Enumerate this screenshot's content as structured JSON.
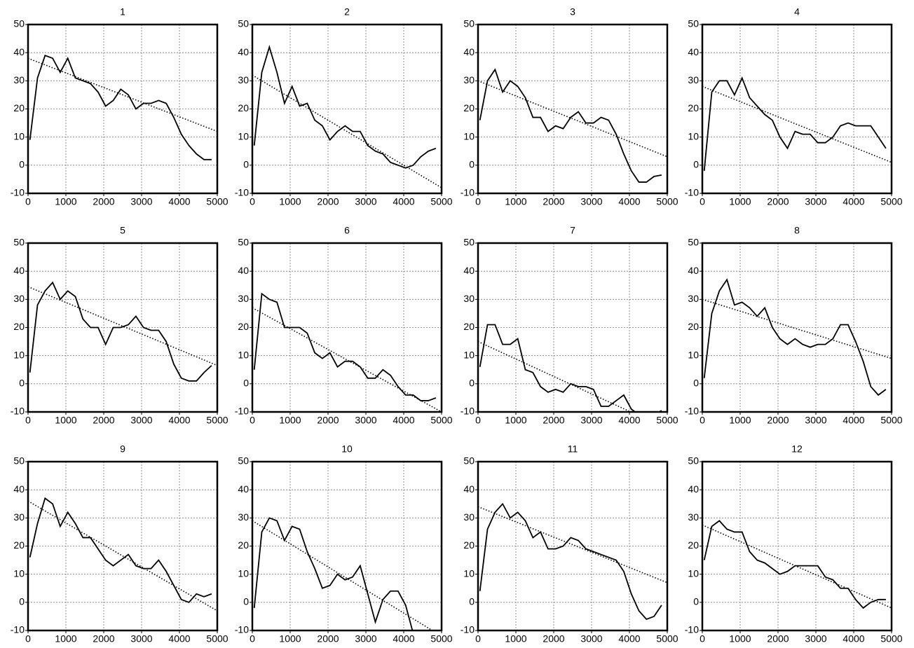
{
  "chart_data": [
    {
      "type": "line",
      "title": "1",
      "x": [
        50,
        250,
        450,
        650,
        850,
        1050,
        1250,
        1450,
        1650,
        1850,
        2050,
        2250,
        2450,
        2650,
        2850,
        3050,
        3250,
        3450,
        3650,
        3850,
        4050,
        4250,
        4450,
        4650,
        4850
      ],
      "series": [
        {
          "color": "#000000",
          "values": [
            9,
            31,
            39,
            38,
            33,
            38,
            31,
            30,
            29,
            26,
            21,
            23,
            27,
            25,
            20,
            22,
            22,
            23,
            22,
            17,
            11,
            7,
            4,
            2,
            2
          ]
        },
        {
          "color": "#000000",
          "style": "dotted",
          "x": [
            0,
            5000
          ],
          "values": [
            38,
            12
          ]
        }
      ],
      "xlim": [
        0,
        5000
      ],
      "xticks": [
        0,
        1000,
        2000,
        3000,
        4000,
        5000
      ],
      "ylim": [
        -10,
        50
      ],
      "yticks": [
        -10,
        0,
        10,
        20,
        30,
        40,
        50
      ],
      "grid": true
    },
    {
      "type": "line",
      "title": "2",
      "x": [
        50,
        250,
        450,
        650,
        850,
        1050,
        1250,
        1450,
        1650,
        1850,
        2050,
        2250,
        2450,
        2650,
        2850,
        3050,
        3250,
        3450,
        3650,
        3850,
        4050,
        4250,
        4450,
        4650,
        4850
      ],
      "series": [
        {
          "color": "#000000",
          "values": [
            7,
            33,
            42,
            33,
            22,
            28,
            21,
            22,
            16,
            14,
            9,
            12,
            14,
            12,
            12,
            7,
            5,
            4,
            1,
            0,
            -1,
            0,
            3,
            5,
            6
          ]
        },
        {
          "color": "#000000",
          "style": "dotted",
          "x": [
            0,
            5000
          ],
          "values": [
            32,
            -8
          ]
        }
      ],
      "xlim": [
        0,
        5000
      ],
      "xticks": [
        0,
        1000,
        2000,
        3000,
        4000,
        5000
      ],
      "ylim": [
        -10,
        50
      ],
      "yticks": [
        -10,
        0,
        10,
        20,
        30,
        40,
        50
      ],
      "grid": true
    },
    {
      "type": "line",
      "title": "3",
      "x": [
        50,
        250,
        450,
        650,
        850,
        1050,
        1250,
        1450,
        1650,
        1850,
        2050,
        2250,
        2450,
        2650,
        2850,
        3050,
        3250,
        3450,
        3650,
        3850,
        4050,
        4250,
        4450,
        4650,
        4850
      ],
      "series": [
        {
          "color": "#000000",
          "values": [
            16,
            30,
            34,
            26,
            30,
            28,
            24,
            17,
            17,
            12,
            14,
            13,
            17,
            19,
            15,
            15,
            17,
            16,
            11,
            4,
            -2,
            -6,
            -6,
            -4,
            -3.5
          ]
        },
        {
          "color": "#000000",
          "style": "dotted",
          "x": [
            0,
            5000
          ],
          "values": [
            30,
            3
          ]
        }
      ],
      "xlim": [
        0,
        5000
      ],
      "xticks": [
        0,
        1000,
        2000,
        3000,
        4000,
        5000
      ],
      "ylim": [
        -10,
        50
      ],
      "yticks": [
        -10,
        0,
        10,
        20,
        30,
        40,
        50
      ],
      "grid": true
    },
    {
      "type": "line",
      "title": "4",
      "x": [
        50,
        250,
        450,
        650,
        850,
        1050,
        1250,
        1450,
        1650,
        1850,
        2050,
        2250,
        2450,
        2650,
        2850,
        3050,
        3250,
        3450,
        3650,
        3850,
        4050,
        4250,
        4450,
        4650,
        4850
      ],
      "series": [
        {
          "color": "#000000",
          "values": [
            -2,
            26,
            30,
            30,
            25,
            31,
            24,
            21,
            18,
            16,
            10,
            6,
            12,
            11,
            11,
            8,
            8,
            10,
            14,
            15,
            14,
            14,
            14,
            10,
            6
          ]
        },
        {
          "color": "#000000",
          "style": "dotted",
          "x": [
            0,
            5000
          ],
          "values": [
            28,
            1
          ]
        }
      ],
      "xlim": [
        0,
        5000
      ],
      "xticks": [
        0,
        1000,
        2000,
        3000,
        4000,
        5000
      ],
      "ylim": [
        -10,
        50
      ],
      "yticks": [
        -10,
        0,
        10,
        20,
        30,
        40,
        50
      ],
      "grid": true
    },
    {
      "type": "line",
      "title": "5",
      "x": [
        50,
        250,
        450,
        650,
        850,
        1050,
        1250,
        1450,
        1650,
        1850,
        2050,
        2250,
        2450,
        2650,
        2850,
        3050,
        3250,
        3450,
        3650,
        3850,
        4050,
        4250,
        4450,
        4650,
        4850
      ],
      "series": [
        {
          "color": "#000000",
          "values": [
            4,
            28,
            33,
            36,
            30,
            33,
            31,
            23,
            20,
            20,
            14,
            20,
            20,
            21,
            24,
            20,
            19,
            19,
            15,
            7,
            2,
            1,
            1,
            4,
            6.5
          ]
        },
        {
          "color": "#000000",
          "style": "dotted",
          "x": [
            0,
            5000
          ],
          "values": [
            34.5,
            6.5
          ]
        }
      ],
      "xlim": [
        0,
        5000
      ],
      "xticks": [
        0,
        1000,
        2000,
        3000,
        4000,
        5000
      ],
      "ylim": [
        -10,
        50
      ],
      "yticks": [
        -10,
        0,
        10,
        20,
        30,
        40,
        50
      ],
      "grid": true
    },
    {
      "type": "line",
      "title": "6",
      "x": [
        50,
        250,
        450,
        650,
        850,
        1050,
        1250,
        1450,
        1650,
        1850,
        2050,
        2250,
        2450,
        2650,
        2850,
        3050,
        3250,
        3450,
        3650,
        3850,
        4050,
        4250,
        4450,
        4650,
        4850
      ],
      "series": [
        {
          "color": "#000000",
          "values": [
            5,
            32,
            30,
            29,
            20,
            20,
            20,
            18,
            11,
            9,
            11,
            6,
            8,
            8,
            6,
            2,
            2,
            5,
            3,
            -1,
            -4,
            -4,
            -6,
            -6,
            -5
          ]
        },
        {
          "color": "#000000",
          "style": "dotted",
          "x": [
            0,
            5000
          ],
          "values": [
            27,
            -10
          ]
        }
      ],
      "xlim": [
        0,
        5000
      ],
      "xticks": [
        0,
        1000,
        2000,
        3000,
        4000,
        5000
      ],
      "ylim": [
        -10,
        50
      ],
      "yticks": [
        -10,
        0,
        10,
        20,
        30,
        40,
        50
      ],
      "grid": true
    },
    {
      "type": "line",
      "title": "7",
      "x": [
        50,
        250,
        450,
        650,
        850,
        1050,
        1250,
        1450,
        1650,
        1850,
        2050,
        2250,
        2450,
        2650,
        2850,
        3050,
        3250,
        3450,
        3650,
        3850,
        4050,
        4250,
        4450,
        4650,
        4850
      ],
      "series": [
        {
          "color": "#000000",
          "values": [
            6,
            21,
            21,
            14,
            14,
            16,
            5,
            4,
            -1,
            -3,
            -2,
            -3,
            0,
            -1,
            -1,
            -2,
            -8,
            -8,
            -6,
            -4,
            -9,
            -11,
            -11,
            -11,
            -9.5
          ]
        },
        {
          "color": "#000000",
          "style": "dotted",
          "x": [
            0,
            5000
          ],
          "values": [
            15,
            -16
          ]
        }
      ],
      "xlim": [
        0,
        5000
      ],
      "xticks": [
        0,
        1000,
        2000,
        3000,
        4000,
        5000
      ],
      "ylim": [
        -10,
        50
      ],
      "yticks": [
        -10,
        0,
        10,
        20,
        30,
        40,
        50
      ],
      "grid": true
    },
    {
      "type": "line",
      "title": "8",
      "x": [
        50,
        250,
        450,
        650,
        850,
        1050,
        1250,
        1450,
        1650,
        1850,
        2050,
        2250,
        2450,
        2650,
        2850,
        3050,
        3250,
        3450,
        3650,
        3850,
        4050,
        4250,
        4450,
        4650,
        4850
      ],
      "series": [
        {
          "color": "#000000",
          "values": [
            2,
            25,
            33,
            37,
            28,
            29,
            27,
            24,
            27,
            20,
            16,
            14,
            16,
            14,
            13,
            14,
            14,
            16,
            21,
            21,
            15,
            8,
            -1,
            -4,
            -2
          ]
        },
        {
          "color": "#000000",
          "style": "dotted",
          "x": [
            0,
            5000
          ],
          "values": [
            30,
            9
          ]
        }
      ],
      "xlim": [
        0,
        5000
      ],
      "xticks": [
        0,
        1000,
        2000,
        3000,
        4000,
        5000
      ],
      "ylim": [
        -10,
        50
      ],
      "yticks": [
        -10,
        0,
        10,
        20,
        30,
        40,
        50
      ],
      "grid": true
    },
    {
      "type": "line",
      "title": "9",
      "x": [
        50,
        250,
        450,
        650,
        850,
        1050,
        1250,
        1450,
        1650,
        1850,
        2050,
        2250,
        2450,
        2650,
        2850,
        3050,
        3250,
        3450,
        3650,
        3850,
        4050,
        4250,
        4450,
        4650,
        4850
      ],
      "series": [
        {
          "color": "#000000",
          "values": [
            16,
            28,
            37,
            35,
            27,
            32,
            28,
            23,
            23,
            19,
            15,
            13,
            15,
            17,
            13,
            12,
            12,
            15,
            11,
            6,
            1,
            0,
            3,
            2,
            3
          ]
        },
        {
          "color": "#000000",
          "style": "dotted",
          "x": [
            0,
            5000
          ],
          "values": [
            36,
            -3
          ]
        }
      ],
      "xlim": [
        0,
        5000
      ],
      "xticks": [
        0,
        1000,
        2000,
        3000,
        4000,
        5000
      ],
      "ylim": [
        -10,
        50
      ],
      "yticks": [
        -10,
        0,
        10,
        20,
        30,
        40,
        50
      ],
      "grid": true
    },
    {
      "type": "line",
      "title": "10",
      "x": [
        50,
        250,
        450,
        650,
        850,
        1050,
        1250,
        1450,
        1650,
        1850,
        2050,
        2250,
        2450,
        2650,
        2850,
        3050,
        3250,
        3450,
        3650,
        3850,
        4050,
        4250,
        4450,
        4650,
        4850
      ],
      "series": [
        {
          "color": "#000000",
          "values": [
            -2,
            25,
            30,
            29,
            22,
            27,
            26,
            18,
            12,
            5,
            6,
            10,
            8,
            9,
            13,
            3,
            -7,
            1,
            4,
            4,
            -1,
            -11,
            null,
            null,
            null
          ]
        },
        {
          "color": "#000000",
          "style": "dotted",
          "x": [
            0,
            5000
          ],
          "values": [
            29,
            -12
          ]
        }
      ],
      "xlim": [
        0,
        5000
      ],
      "xticks": [
        0,
        1000,
        2000,
        3000,
        4000,
        5000
      ],
      "ylim": [
        -10,
        50
      ],
      "yticks": [
        -10,
        0,
        10,
        20,
        30,
        40,
        50
      ],
      "grid": true
    },
    {
      "type": "line",
      "title": "11",
      "x": [
        50,
        250,
        450,
        650,
        850,
        1050,
        1250,
        1450,
        1650,
        1850,
        2050,
        2250,
        2450,
        2650,
        2850,
        3050,
        3250,
        3450,
        3650,
        3850,
        4050,
        4250,
        4450,
        4650,
        4850
      ],
      "series": [
        {
          "color": "#000000",
          "values": [
            4,
            26,
            32,
            35,
            30,
            32,
            29,
            23,
            25,
            19,
            19,
            20,
            23,
            22,
            19,
            18,
            17,
            16,
            15,
            11,
            3,
            -3,
            -6,
            -5,
            -1
          ]
        },
        {
          "color": "#000000",
          "style": "dotted",
          "x": [
            0,
            5000
          ],
          "values": [
            34,
            7
          ]
        }
      ],
      "xlim": [
        0,
        5000
      ],
      "xticks": [
        0,
        1000,
        2000,
        3000,
        4000,
        5000
      ],
      "ylim": [
        -10,
        50
      ],
      "yticks": [
        -10,
        0,
        10,
        20,
        30,
        40,
        50
      ],
      "grid": true
    },
    {
      "type": "line",
      "title": "12",
      "x": [
        50,
        250,
        450,
        650,
        850,
        1050,
        1250,
        1450,
        1650,
        1850,
        2050,
        2250,
        2450,
        2650,
        2850,
        3050,
        3250,
        3450,
        3650,
        3850,
        4050,
        4250,
        4450,
        4650,
        4850
      ],
      "series": [
        {
          "color": "#000000",
          "values": [
            15,
            27,
            29,
            26,
            25,
            25,
            18,
            15,
            14,
            12,
            10,
            11,
            13,
            13,
            13,
            13,
            9,
            8,
            5,
            5,
            1,
            -2,
            0,
            1,
            1
          ]
        },
        {
          "color": "#000000",
          "style": "dotted",
          "x": [
            0,
            5000
          ],
          "values": [
            27.5,
            -2
          ]
        }
      ],
      "xlim": [
        0,
        5000
      ],
      "xticks": [
        0,
        1000,
        2000,
        3000,
        4000,
        5000
      ],
      "ylim": [
        -10,
        50
      ],
      "yticks": [
        -10,
        0,
        10,
        20,
        30,
        40,
        50
      ],
      "grid": true
    }
  ]
}
